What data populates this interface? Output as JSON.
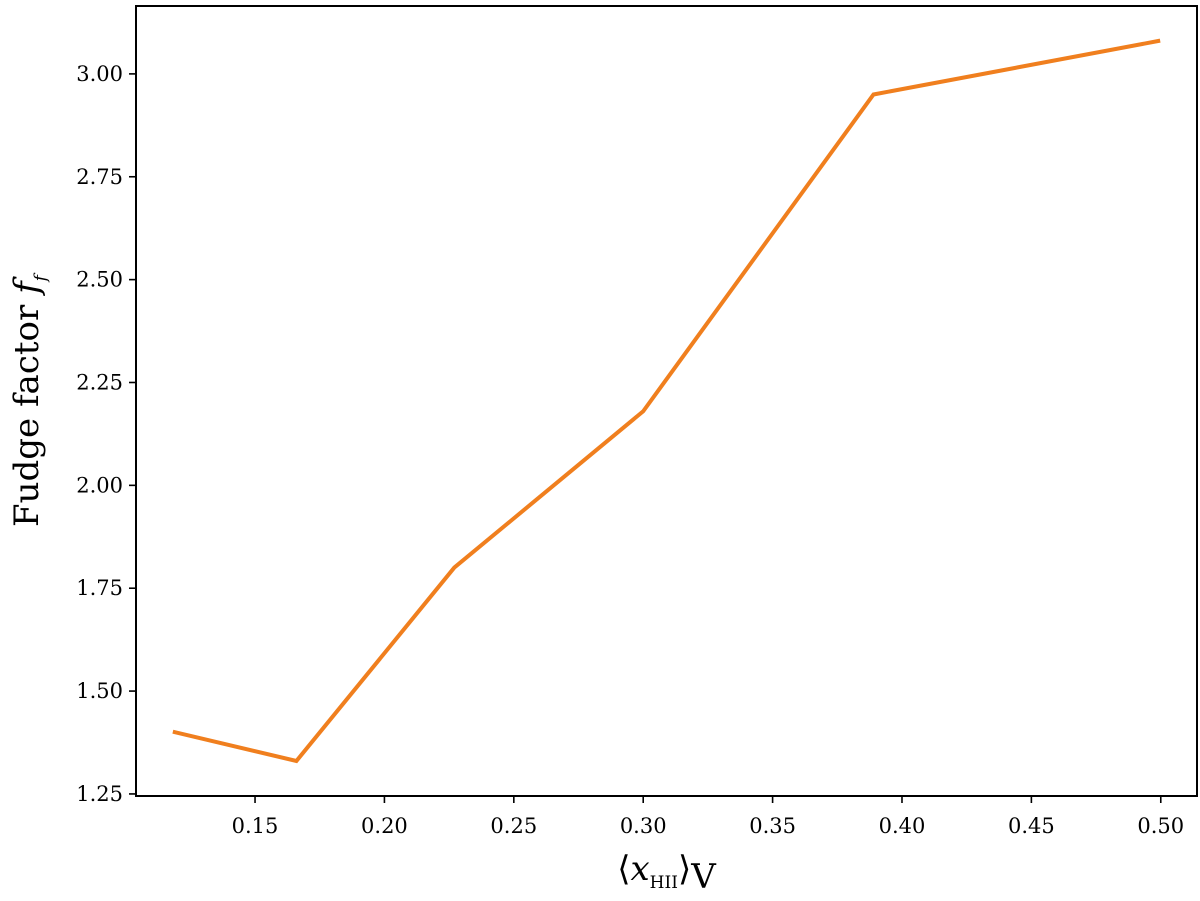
{
  "chart_data": {
    "type": "line",
    "title": "",
    "xlabel": {
      "open": "⟨",
      "var": "x",
      "sub": "HII",
      "close": "⟩",
      "suffix": "V"
    },
    "ylabel": {
      "text": "Fudge factor ",
      "var": "f",
      "sub": "f"
    },
    "xlim": [
      0.104,
      0.514
    ],
    "ylim": [
      1.245,
      3.165
    ],
    "xticks": [
      0.15,
      0.2,
      0.25,
      0.3,
      0.35,
      0.4,
      0.45,
      0.5
    ],
    "xtick_labels": [
      "0.15",
      "0.20",
      "0.25",
      "0.30",
      "0.35",
      "0.40",
      "0.45",
      "0.50"
    ],
    "yticks": [
      1.25,
      1.5,
      1.75,
      2.0,
      2.25,
      2.5,
      2.75,
      3.0
    ],
    "ytick_labels": [
      "1.25",
      "1.50",
      "1.75",
      "2.00",
      "2.25",
      "2.50",
      "2.75",
      "3.00"
    ],
    "grid": false,
    "series": [
      {
        "color": "#f07f1e",
        "x": [
          0.119,
          0.166,
          0.227,
          0.3,
          0.389,
          0.499
        ],
        "y": [
          1.4,
          1.33,
          1.8,
          2.18,
          2.95,
          3.08
        ]
      }
    ]
  }
}
